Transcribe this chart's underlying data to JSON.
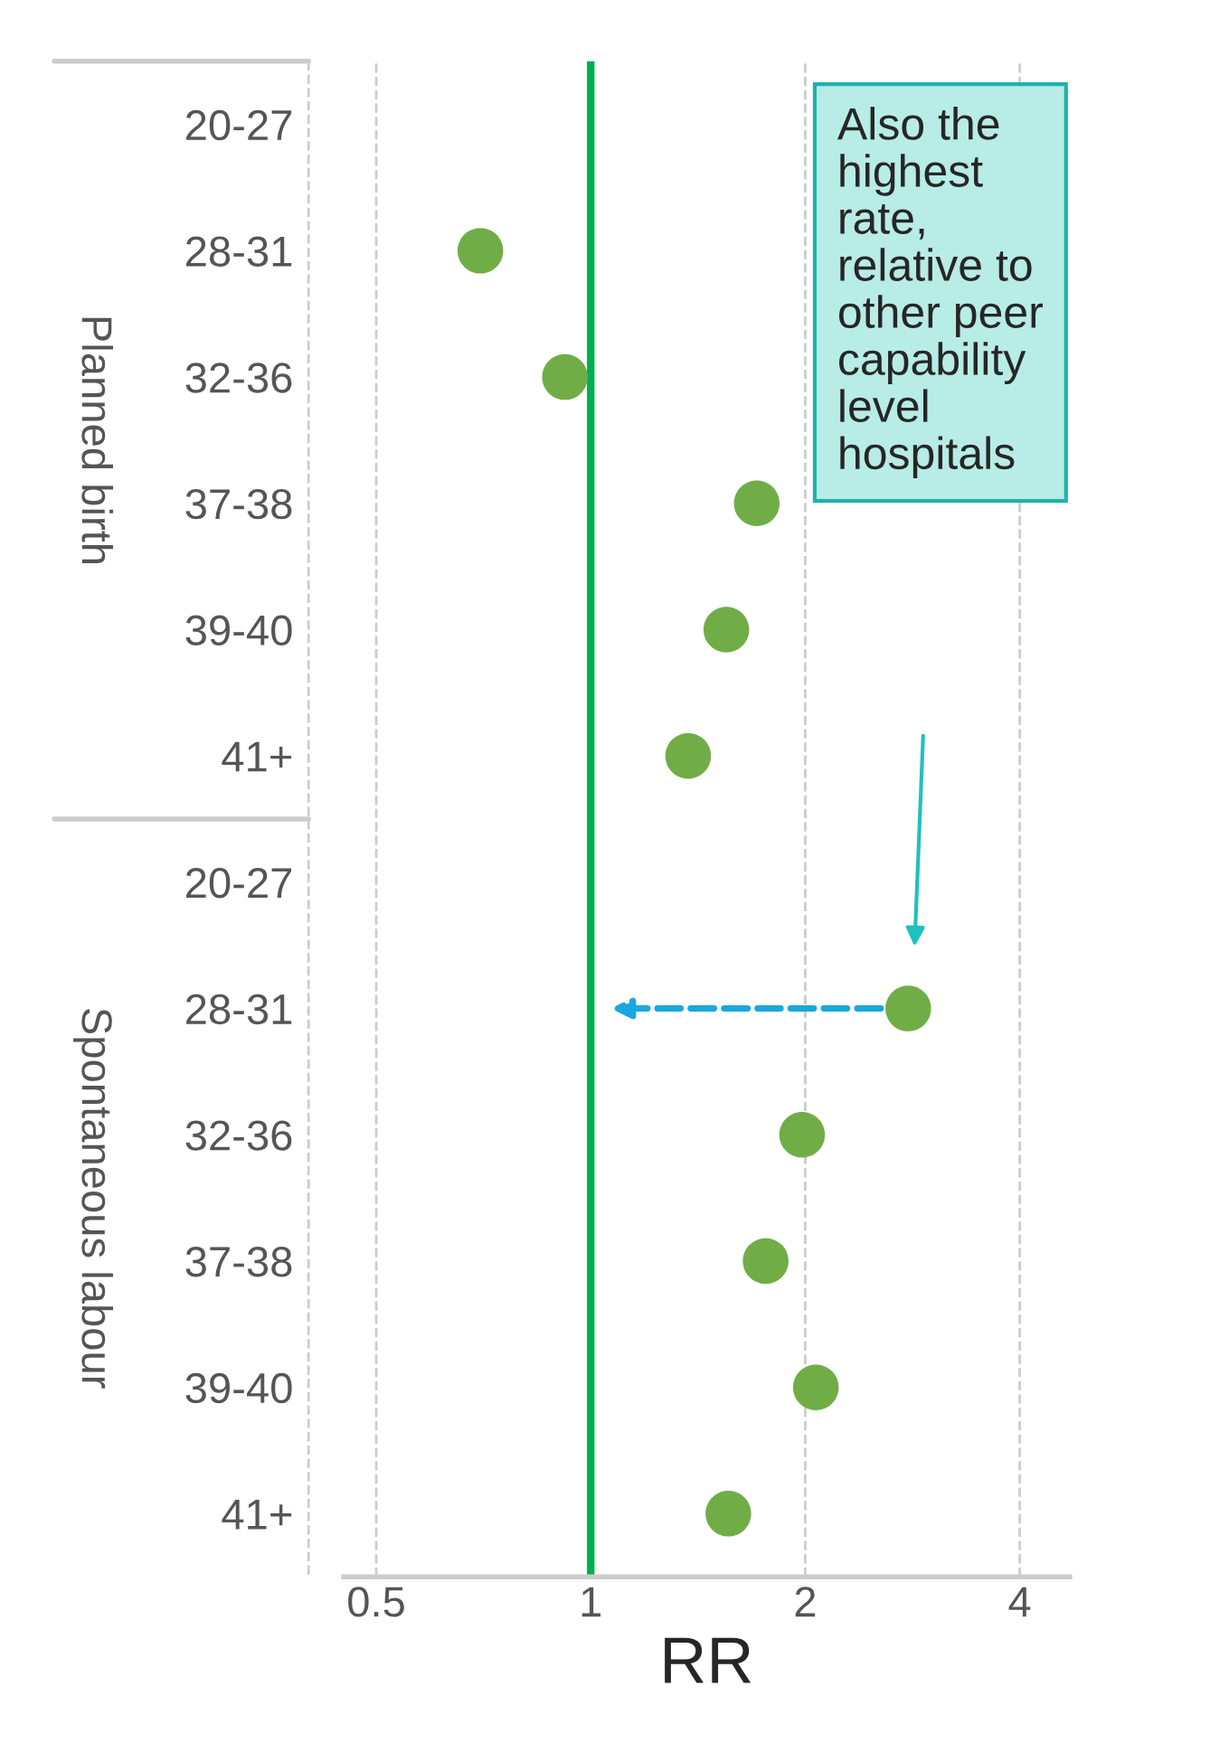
{
  "chart_data": {
    "type": "scatter",
    "orientation": "horizontal",
    "xlabel": "RR",
    "categories": [
      "20-27",
      "28-31",
      "32-36",
      "37-38",
      "39-40",
      "41+",
      "20-27",
      "28-31",
      "32-36",
      "37-38",
      "39-40",
      "41+"
    ],
    "series": [
      {
        "color": "#70ad47",
        "values": [
          null,
          0.7,
          0.92,
          1.71,
          1.55,
          1.37,
          null,
          2.79,
          1.98,
          1.76,
          2.07,
          1.56
        ]
      }
    ],
    "log": "x",
    "xlim": [
      0.45,
      4.7
    ],
    "xticks": [
      0.5,
      1,
      2,
      4
    ],
    "grid": "x",
    "marker": "circle",
    "ref_lines": [
      {
        "axis": "x",
        "value": 1,
        "color": "#00b050",
        "line_style": "solid"
      }
    ],
    "annotations": [
      "Planned birth",
      "Spontaneous labour",
      "Also the\nhighest\nrate,\nrelative to\nother peer\ncapability\nlevel\nhospitals"
    ]
  }
}
